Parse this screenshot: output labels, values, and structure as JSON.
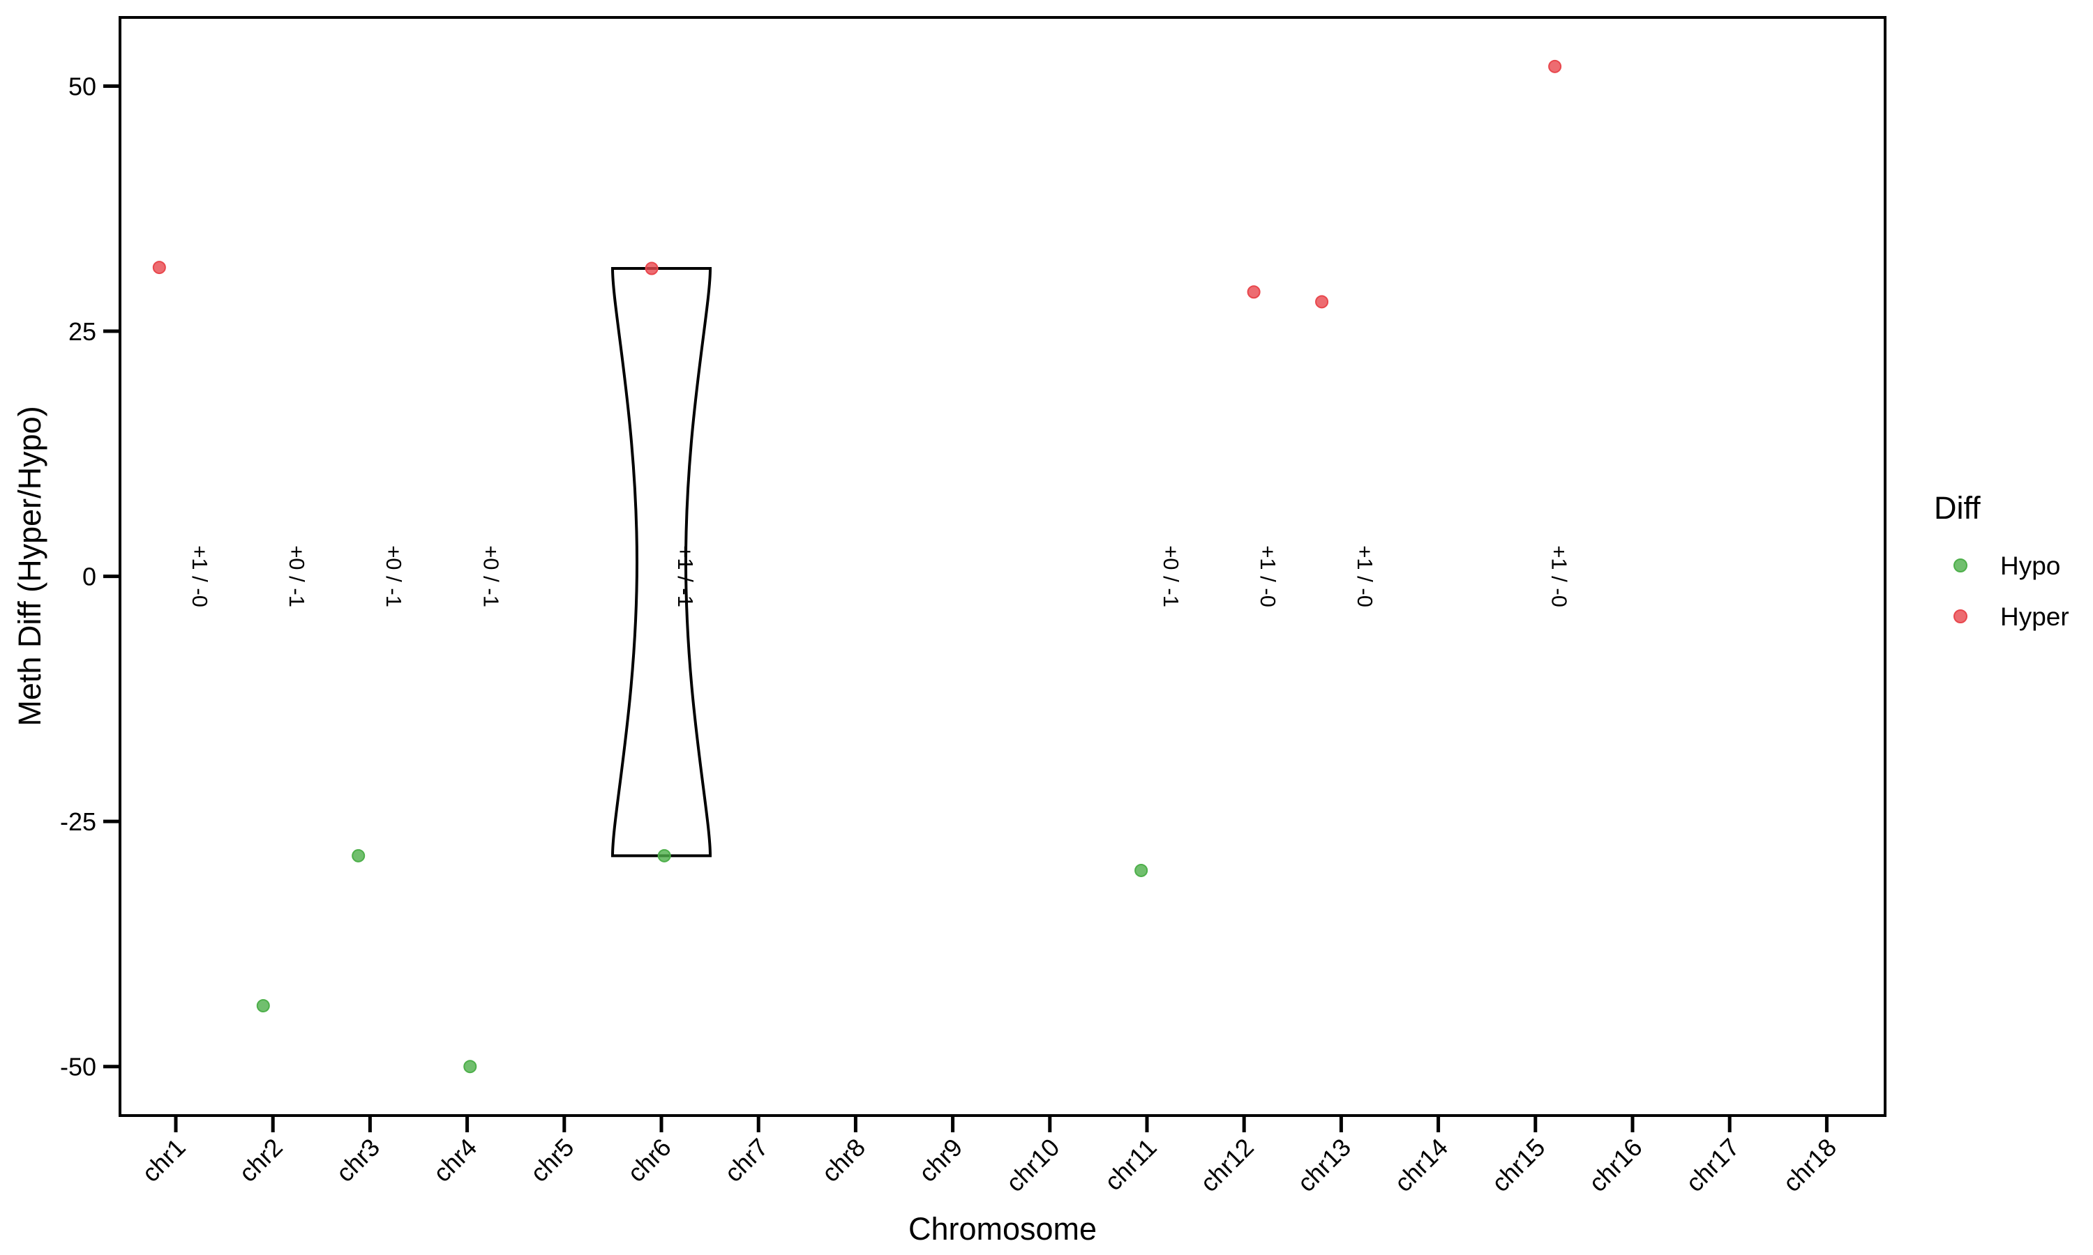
{
  "chart_data": {
    "type": "scatter",
    "xlabel": "Chromosome",
    "ylabel": "Meth Diff (Hyper/Hypo)",
    "ylim": [
      -55,
      57
    ],
    "yticks": [
      50,
      25,
      0,
      -25,
      -50
    ],
    "ytick_labels": [
      "50",
      "25",
      "0",
      "-25",
      "-50"
    ],
    "categories": [
      "chr1",
      "chr2",
      "chr3",
      "chr4",
      "chr5",
      "chr6",
      "chr7",
      "chr8",
      "chr9",
      "chr10",
      "chr11",
      "chr12",
      "chr13",
      "chr14",
      "chr15",
      "chr16",
      "chr17",
      "chr18"
    ],
    "grid": false,
    "legend": {
      "title": "Diff",
      "position": "right",
      "entries": [
        {
          "label": "Hypo",
          "color": "#4daf4a"
        },
        {
          "label": "Hyper",
          "color": "#e8474d"
        }
      ]
    },
    "series": [
      {
        "name": "Hypo",
        "color": "#4daf4a",
        "points": [
          {
            "category": "chr2",
            "offset": -0.1,
            "y": -43.8
          },
          {
            "category": "chr3",
            "offset": -0.12,
            "y": -28.5
          },
          {
            "category": "chr4",
            "offset": 0.03,
            "y": -50
          },
          {
            "category": "chr6",
            "offset": 0.03,
            "y": -28.5
          },
          {
            "category": "chr11",
            "offset": -0.06,
            "y": -30
          }
        ]
      },
      {
        "name": "Hyper",
        "color": "#e8474d",
        "points": [
          {
            "category": "chr1",
            "offset": -0.17,
            "y": 31.5
          },
          {
            "category": "chr6",
            "offset": -0.1,
            "y": 31.4
          },
          {
            "category": "chr12",
            "offset": 0.1,
            "y": 29
          },
          {
            "category": "chr13",
            "offset": -0.2,
            "y": 28
          },
          {
            "category": "chr15",
            "offset": 0.2,
            "y": 52
          }
        ]
      }
    ],
    "violins": [
      {
        "category": "chr6",
        "ymin": -28.5,
        "ymax": 31.4
      }
    ],
    "count_labels": [
      {
        "category": "chr1",
        "text": "+1 / -0"
      },
      {
        "category": "chr2",
        "text": "+0 / -1"
      },
      {
        "category": "chr3",
        "text": "+0 / -1"
      },
      {
        "category": "chr4",
        "text": "+0 / -1"
      },
      {
        "category": "chr6",
        "text": "+1 / -1"
      },
      {
        "category": "chr11",
        "text": "+0 / -1"
      },
      {
        "category": "chr12",
        "text": "+1 / -0"
      },
      {
        "category": "chr13",
        "text": "+1 / -0"
      },
      {
        "category": "chr15",
        "text": "+1 / -0"
      }
    ]
  }
}
